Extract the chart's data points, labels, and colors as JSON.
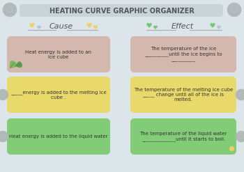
{
  "title": "HEATING CURVE GRAPHIC ORGANIZER",
  "bg_color": "#dce6ea",
  "title_bg": "#c8d4d8",
  "cause_label": "Cause",
  "effect_label": "Effect",
  "rows": [
    {
      "cause_text": "Heat energy is added to an\nice cube",
      "effect_text": "The temperature of the ice\n__________until the ice begins to\n__________",
      "color": "#d4b8ad"
    },
    {
      "cause_text": "_____energy is added to the melting ice\ncube .",
      "effect_text": "The temperature of the melting ice cube\n_____ change until all of the ice is\nmelted.",
      "color": "#e8d96a"
    },
    {
      "cause_text": "Heat energy is added to the liquid water",
      "effect_text": "The temperature of the liquid water\n______________until it starts to boil.",
      "color": "#82cc78"
    }
  ],
  "arrow_color": "#c8a870",
  "heart_yellow": "#f0d060",
  "heart_green": "#70c870",
  "heart_blue": "#a8c8d8",
  "heart_yellow2": "#f0d060",
  "leaf_green": "#6ab06a",
  "flower_gray": "#b0b8b8",
  "title_fontsize": 7.0,
  "label_fontsize": 8.0,
  "cell_fontsize": 5.0
}
